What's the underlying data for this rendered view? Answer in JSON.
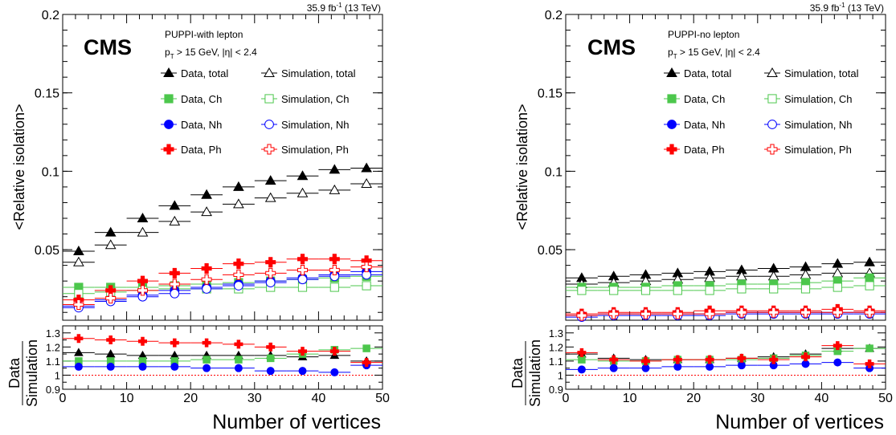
{
  "panels": [
    {
      "lumi": "35.9 fb",
      "lumi_sup": "-1",
      "energy": " (13 TeV)",
      "experiment": "CMS",
      "header": "PUPPI-with lepton",
      "cut_pt": "p",
      "cut_pt_sub": "T",
      "cut_rest": " > 15 GeV, |η| < 2.4",
      "legend": [
        {
          "label": "Data, total",
          "color": "#000000",
          "marker": "triangle",
          "filled": true
        },
        {
          "label": "Simulation, total",
          "color": "#000000",
          "marker": "triangle",
          "filled": false
        },
        {
          "label": "Data, Ch",
          "color": "#4cc74c",
          "marker": "square",
          "filled": true
        },
        {
          "label": "Simulation, Ch",
          "color": "#4cc74c",
          "marker": "square",
          "filled": false
        },
        {
          "label": "Data, Nh",
          "color": "#0000ff",
          "marker": "circle",
          "filled": true
        },
        {
          "label": "Simulation, Nh",
          "color": "#0000ff",
          "marker": "circle",
          "filled": false
        },
        {
          "label": "Data, Ph",
          "color": "#ff0000",
          "marker": "cross",
          "filled": true
        },
        {
          "label": "Simulation, Ph",
          "color": "#ff0000",
          "marker": "cross",
          "filled": false
        }
      ]
    },
    {
      "lumi": "35.9 fb",
      "lumi_sup": "-1",
      "energy": " (13 TeV)",
      "experiment": "CMS",
      "header": "PUPPI-no lepton",
      "cut_pt": "p",
      "cut_pt_sub": "T",
      "cut_rest": " > 15 GeV, |η| < 2.4",
      "legend": [
        {
          "label": "Data, total",
          "color": "#000000",
          "marker": "triangle",
          "filled": true
        },
        {
          "label": "Simulation, total",
          "color": "#000000",
          "marker": "triangle",
          "filled": false
        },
        {
          "label": "Data, Ch",
          "color": "#4cc74c",
          "marker": "square",
          "filled": true
        },
        {
          "label": "Simulation, Ch",
          "color": "#4cc74c",
          "marker": "square",
          "filled": false
        },
        {
          "label": "Data, Nh",
          "color": "#0000ff",
          "marker": "circle",
          "filled": true
        },
        {
          "label": "Simulation, Nh",
          "color": "#0000ff",
          "marker": "circle",
          "filled": false
        },
        {
          "label": "Data, Ph",
          "color": "#ff0000",
          "marker": "cross",
          "filled": true
        },
        {
          "label": "Simulation, Ph",
          "color": "#ff0000",
          "marker": "cross",
          "filled": false
        }
      ]
    }
  ],
  "chart_data": [
    {
      "type": "scatter",
      "title": "PUPPI-with lepton",
      "xlabel": "Number of vertices",
      "ylabel": "<Relative isolation>",
      "ratio_ylabel": [
        "Data",
        "Simulation"
      ],
      "xlim": [
        0,
        50
      ],
      "ylim": [
        0.005,
        0.2
      ],
      "ratio_ylim": [
        0.9,
        1.35
      ],
      "x_ticks": [
        "0",
        "10",
        "20",
        "30",
        "40",
        "50"
      ],
      "y_ticks": [
        "0.05",
        "0.1",
        "0.15",
        "0.2"
      ],
      "ratio_y_ticks": [
        "0.9",
        "1",
        "1.1",
        "1.2",
        "1.3"
      ],
      "bin_half_width": 2.5,
      "x": [
        2.5,
        7.5,
        12.5,
        17.5,
        22.5,
        27.5,
        32.5,
        37.5,
        42.5,
        47.5
      ],
      "series": [
        {
          "name": "Data, total",
          "color": "#000000",
          "marker": "triangle",
          "filled": true,
          "values": [
            0.049,
            0.061,
            0.07,
            0.078,
            0.085,
            0.09,
            0.094,
            0.097,
            0.101,
            0.102
          ]
        },
        {
          "name": "Simulation, total",
          "color": "#000000",
          "marker": "triangle",
          "filled": false,
          "values": [
            0.042,
            0.053,
            0.061,
            0.068,
            0.074,
            0.079,
            0.083,
            0.086,
            0.088,
            0.092
          ]
        },
        {
          "name": "Data, Ch",
          "color": "#4cc74c",
          "marker": "square",
          "filled": true,
          "values": [
            0.026,
            0.026,
            0.026,
            0.027,
            0.028,
            0.029,
            0.03,
            0.031,
            0.032,
            0.033
          ]
        },
        {
          "name": "Simulation, Ch",
          "color": "#4cc74c",
          "marker": "square",
          "filled": false,
          "values": [
            0.022,
            0.023,
            0.024,
            0.025,
            0.025,
            0.025,
            0.026,
            0.026,
            0.026,
            0.027
          ]
        },
        {
          "name": "Data, Nh",
          "color": "#0000ff",
          "marker": "circle",
          "filled": true,
          "values": [
            0.014,
            0.018,
            0.021,
            0.024,
            0.026,
            0.028,
            0.03,
            0.032,
            0.034,
            0.036
          ]
        },
        {
          "name": "Simulation, Nh",
          "color": "#0000ff",
          "marker": "circle",
          "filled": false,
          "values": [
            0.013,
            0.017,
            0.02,
            0.022,
            0.025,
            0.027,
            0.029,
            0.031,
            0.033,
            0.034
          ]
        },
        {
          "name": "Data, Ph",
          "color": "#ff0000",
          "marker": "cross",
          "filled": true,
          "values": [
            0.018,
            0.024,
            0.03,
            0.035,
            0.038,
            0.041,
            0.042,
            0.044,
            0.044,
            0.043
          ]
        },
        {
          "name": "Simulation, Ph",
          "color": "#ff0000",
          "marker": "cross",
          "filled": false,
          "values": [
            0.015,
            0.019,
            0.024,
            0.028,
            0.031,
            0.034,
            0.035,
            0.037,
            0.037,
            0.039
          ]
        }
      ],
      "ratio_series": [
        {
          "name": "Data, total",
          "color": "#000000",
          "marker": "triangle",
          "values": [
            1.16,
            1.15,
            1.14,
            1.14,
            1.14,
            1.14,
            1.14,
            1.13,
            1.14,
            1.1
          ]
        },
        {
          "name": "Data, Ch",
          "color": "#4cc74c",
          "marker": "square",
          "values": [
            1.1,
            1.1,
            1.1,
            1.1,
            1.11,
            1.11,
            1.12,
            1.15,
            1.18,
            1.19
          ]
        },
        {
          "name": "Data, Nh",
          "color": "#0000ff",
          "marker": "circle",
          "values": [
            1.06,
            1.06,
            1.06,
            1.06,
            1.05,
            1.05,
            1.03,
            1.03,
            1.02,
            1.07
          ]
        },
        {
          "name": "Data, Ph",
          "color": "#ff0000",
          "marker": "cross",
          "values": [
            1.26,
            1.25,
            1.24,
            1.23,
            1.23,
            1.22,
            1.2,
            1.17,
            1.17,
            1.09
          ]
        }
      ]
    },
    {
      "type": "scatter",
      "title": "PUPPI-no lepton",
      "xlabel": "Number of vertices",
      "ylabel": "<Relative isolation>",
      "ratio_ylabel": [
        "Data",
        "Simulation"
      ],
      "xlim": [
        0,
        50
      ],
      "ylim": [
        0.005,
        0.2
      ],
      "ratio_ylim": [
        0.9,
        1.35
      ],
      "x_ticks": [
        "0",
        "10",
        "20",
        "30",
        "40",
        "50"
      ],
      "y_ticks": [
        "0.05",
        "0.1",
        "0.15",
        "0.2"
      ],
      "ratio_y_ticks": [
        "0.9",
        "1",
        "1.1",
        "1.2",
        "1.3"
      ],
      "bin_half_width": 2.5,
      "x": [
        2.5,
        7.5,
        12.5,
        17.5,
        22.5,
        27.5,
        32.5,
        37.5,
        42.5,
        47.5
      ],
      "series": [
        {
          "name": "Data, total",
          "color": "#000000",
          "marker": "triangle",
          "filled": true,
          "values": [
            0.032,
            0.033,
            0.034,
            0.035,
            0.036,
            0.037,
            0.038,
            0.039,
            0.041,
            0.042
          ]
        },
        {
          "name": "Simulation, total",
          "color": "#000000",
          "marker": "triangle",
          "filled": false,
          "values": [
            0.028,
            0.029,
            0.03,
            0.031,
            0.032,
            0.033,
            0.033,
            0.034,
            0.035,
            0.035
          ]
        },
        {
          "name": "Data, Ch",
          "color": "#4cc74c",
          "marker": "square",
          "filled": true,
          "values": [
            0.026,
            0.026,
            0.026,
            0.027,
            0.027,
            0.028,
            0.028,
            0.029,
            0.03,
            0.032
          ]
        },
        {
          "name": "Simulation, Ch",
          "color": "#4cc74c",
          "marker": "square",
          "filled": false,
          "values": [
            0.024,
            0.024,
            0.024,
            0.024,
            0.024,
            0.025,
            0.025,
            0.025,
            0.026,
            0.027
          ]
        },
        {
          "name": "Data, Nh",
          "color": "#0000ff",
          "marker": "circle",
          "filled": true,
          "values": [
            0.008,
            0.009,
            0.009,
            0.009,
            0.009,
            0.01,
            0.01,
            0.01,
            0.01,
            0.01
          ]
        },
        {
          "name": "Simulation, Nh",
          "color": "#0000ff",
          "marker": "circle",
          "filled": false,
          "values": [
            0.007,
            0.008,
            0.008,
            0.008,
            0.008,
            0.009,
            0.009,
            0.009,
            0.009,
            0.009
          ]
        },
        {
          "name": "Data, Ph",
          "color": "#ff0000",
          "marker": "cross",
          "filled": true,
          "values": [
            0.009,
            0.01,
            0.01,
            0.01,
            0.011,
            0.011,
            0.011,
            0.011,
            0.012,
            0.011
          ]
        },
        {
          "name": "Simulation, Ph",
          "color": "#ff0000",
          "marker": "cross",
          "filled": false,
          "values": [
            0.008,
            0.009,
            0.009,
            0.009,
            0.009,
            0.01,
            0.01,
            0.01,
            0.01,
            0.01
          ]
        }
      ],
      "ratio_series": [
        {
          "name": "Data, total",
          "color": "#000000",
          "marker": "triangle",
          "values": [
            1.15,
            1.12,
            1.11,
            1.11,
            1.11,
            1.12,
            1.13,
            1.15,
            1.19,
            1.19
          ]
        },
        {
          "name": "Data, Ch",
          "color": "#4cc74c",
          "marker": "square",
          "values": [
            1.11,
            1.1,
            1.1,
            1.11,
            1.11,
            1.11,
            1.12,
            1.14,
            1.17,
            1.19
          ]
        },
        {
          "name": "Data, Nh",
          "color": "#0000ff",
          "marker": "circle",
          "values": [
            1.04,
            1.05,
            1.05,
            1.06,
            1.06,
            1.07,
            1.07,
            1.08,
            1.09,
            1.05
          ]
        },
        {
          "name": "Data, Ph",
          "color": "#ff0000",
          "marker": "cross",
          "values": [
            1.16,
            1.11,
            1.1,
            1.11,
            1.11,
            1.12,
            1.11,
            1.13,
            1.21,
            1.08
          ]
        }
      ]
    }
  ]
}
